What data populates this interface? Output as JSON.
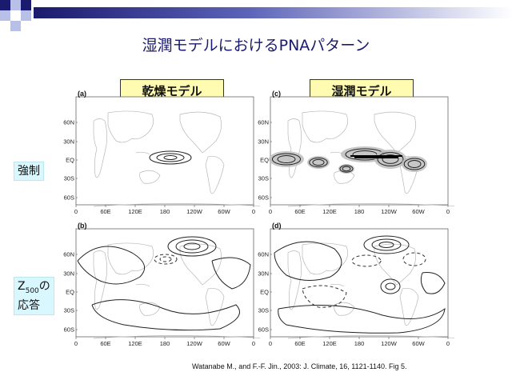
{
  "slide_title": "湿潤モデルにおけるPNAパターン",
  "column_labels": {
    "dry": "乾燥モデル",
    "moist": "湿潤モデル"
  },
  "row_labels": {
    "forcing": "強制",
    "response_line1": "Z",
    "response_sub": "500",
    "response_suffix": "の",
    "response_line2": "応答"
  },
  "panels": {
    "a": "(a)",
    "b": "(b)",
    "c": "(c)",
    "d": "(d)"
  },
  "lat_ticks": [
    "60N",
    "30N",
    "EQ",
    "30S",
    "60S"
  ],
  "lon_ticks": [
    "0",
    "60E",
    "120E",
    "180",
    "120W",
    "60W",
    "0"
  ],
  "citation": "Watanabe M., and F.-F. Jin., 2003:  J. Climate, 16, 1121-1140. Fig 5.",
  "colors": {
    "title": "#1a1a6e",
    "label_bg": "#fffbb0",
    "side_bg": "#d9f7ff",
    "stipple": "#bdbdbd"
  }
}
